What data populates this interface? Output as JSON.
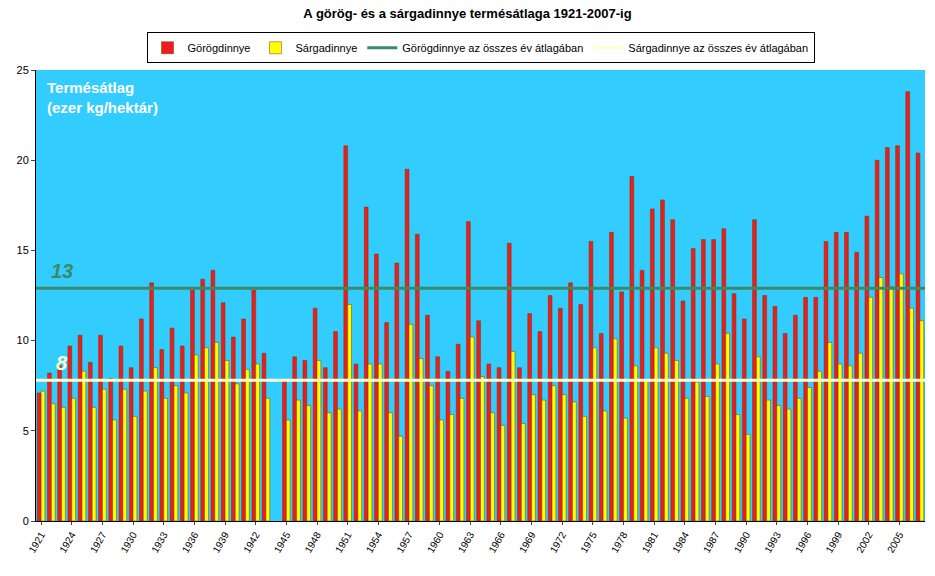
{
  "chart_data": {
    "type": "bar",
    "title": "A görög- és a sárgadinnye termésátlaga 1921-2007-ig",
    "ylabel": [
      "Termésátlag",
      "(ezer kg/hektár)"
    ],
    "categories": [
      "1921",
      null,
      null,
      "1924",
      null,
      null,
      "1927",
      null,
      null,
      "1930",
      null,
      null,
      "1933",
      null,
      null,
      "1936",
      null,
      null,
      "1939",
      null,
      null,
      "1942",
      null,
      null,
      "1945",
      null,
      null,
      "1948",
      null,
      null,
      "1951",
      null,
      null,
      "1954",
      null,
      null,
      "1957",
      null,
      null,
      "1960",
      null,
      null,
      "1963",
      null,
      null,
      "1966",
      null,
      null,
      "1969",
      null,
      null,
      "1972",
      null,
      null,
      "1975",
      null,
      null,
      "1978",
      null,
      null,
      "1981",
      null,
      null,
      "1984",
      null,
      null,
      "1987",
      null,
      null,
      "1990",
      null,
      null,
      "1993",
      null,
      null,
      "1996",
      null,
      null,
      "1999",
      null,
      null,
      "2002",
      null,
      null,
      "2005",
      null,
      null
    ],
    "series": [
      {
        "name": "Görögdinnye",
        "type": "bar",
        "color": "#ee1c1c",
        "values": [
          7.1,
          8.2,
          8.6,
          9.7,
          10.3,
          8.8,
          10.3,
          7.9,
          9.7,
          8.5,
          11.2,
          13.2,
          9.5,
          10.7,
          9.7,
          12.8,
          13.4,
          13.9,
          12.1,
          10.2,
          11.2,
          12.8,
          9.3,
          null,
          7.8,
          9.1,
          8.9,
          11.8,
          8.5,
          10.5,
          20.8,
          8.7,
          17.4,
          14.8,
          11.0,
          14.3,
          19.5,
          15.9,
          11.4,
          9.1,
          8.3,
          9.8,
          16.6,
          11.1,
          8.7,
          8.5,
          15.4,
          8.5,
          11.5,
          10.5,
          12.5,
          11.8,
          13.2,
          12.0,
          15.5,
          10.4,
          16.0,
          12.7,
          19.1,
          13.9,
          17.3,
          17.8,
          16.7,
          12.2,
          15.1,
          15.6,
          15.6,
          16.2,
          12.6,
          11.2,
          16.7,
          12.5,
          11.9,
          10.4,
          11.4,
          12.4,
          12.4,
          15.5,
          16.0,
          16.0,
          14.9,
          16.9,
          20.0,
          20.7,
          20.8,
          23.8,
          20.4
        ]
      },
      {
        "name": "Sárgadinnye",
        "type": "bar",
        "color": "#ffff00",
        "values": [
          7.2,
          6.5,
          6.3,
          6.8,
          8.3,
          6.3,
          7.3,
          5.6,
          7.3,
          5.8,
          7.2,
          8.5,
          6.8,
          7.5,
          7.1,
          9.2,
          9.6,
          9.9,
          8.9,
          7.6,
          8.4,
          8.7,
          6.8,
          null,
          5.6,
          6.7,
          6.4,
          8.9,
          6.0,
          6.2,
          12.0,
          6.1,
          8.7,
          8.7,
          6.0,
          4.7,
          10.9,
          9.0,
          7.5,
          5.6,
          5.9,
          6.8,
          10.2,
          8.0,
          6.0,
          5.3,
          9.4,
          5.4,
          7.0,
          6.7,
          7.5,
          7.0,
          6.6,
          5.8,
          9.6,
          6.1,
          10.1,
          5.7,
          8.6,
          7.8,
          9.6,
          9.3,
          8.9,
          6.8,
          7.7,
          6.9,
          8.7,
          10.4,
          5.9,
          4.8,
          9.1,
          6.7,
          6.4,
          6.2,
          6.8,
          7.4,
          8.3,
          9.9,
          8.7,
          8.6,
          9.3,
          12.4,
          13.5,
          13.0,
          13.7,
          11.8,
          11.1
        ]
      },
      {
        "name": "Görögdinnye az összes év átlagában",
        "type": "line",
        "color": "#3a8a66",
        "value": 12.9,
        "label": "13"
      },
      {
        "name": "Sárgadinnye az összes év átlagában",
        "type": "line",
        "color": "#ffffcc",
        "value": 7.8,
        "label": "8"
      }
    ],
    "ylim": [
      0,
      25
    ],
    "yticks": [
      0,
      5,
      10,
      15,
      20,
      25
    ],
    "grid": false,
    "legend": "top"
  }
}
